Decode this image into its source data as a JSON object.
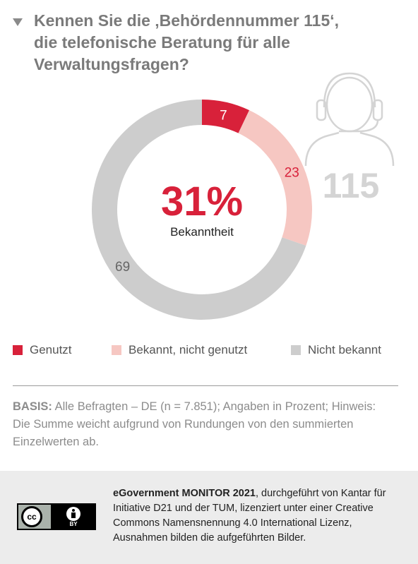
{
  "question": {
    "text": "Kennen Sie die ‚Behördennummer 115‘,\ndie telefonische Beratung für alle\nVerwaltungsfragen?"
  },
  "chart_data": {
    "type": "pie",
    "categories": [
      "Genutzt",
      "Bekannt, nicht genutzt",
      "Nicht bekannt"
    ],
    "values": [
      7,
      23,
      69
    ],
    "colors": [
      "#d8213a",
      "#f6c7c2",
      "#cdcdcd"
    ],
    "center_value": "31%",
    "center_label": "Bekanntheit",
    "legend_position": "bottom"
  },
  "badge": {
    "number": "115",
    "icon": "headset-person-icon"
  },
  "legend": [
    {
      "label": "Genutzt",
      "color": "#d8213a"
    },
    {
      "label": "Bekannt, nicht genutzt",
      "color": "#f6c7c2"
    },
    {
      "label": "Nicht bekannt",
      "color": "#cdcdcd"
    }
  ],
  "basis": {
    "label": "BASIS:",
    "text": " Alle Befragten – DE (n = 7.851); Angaben in Prozent;\nHinweis: Die Summe weicht aufgrund von Rundungen von den summierten Einzelwerten ab."
  },
  "footer": {
    "brand": "eGovernment MONITOR 2021",
    "text": ", durchgeführt von Kantar für Initiative D21 und der TUM, lizenziert unter einer Creative Commons Namensnennung 4.0 International Lizenz, Ausnahmen bilden die aufgeführten Bilder.",
    "cc_label": "cc",
    "by_label": "BY",
    "license_icon": "cc-by-icon"
  }
}
